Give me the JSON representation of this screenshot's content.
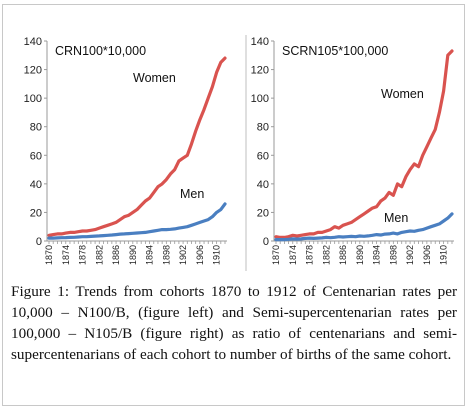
{
  "caption": {
    "label": "Figure 1:",
    "text": " Trends from cohorts 1870 to 1912 of Centenarian rates per 10,000 – N100/B, (figure left) and Semi-supercentenarian rates per 100,000 – N105/B (figure right) as ratio of centenarians and semi-supercentenarians of each cohort to number of births of the same cohort."
  },
  "colors": {
    "women": "#d9534f",
    "men": "#4a7fc1"
  },
  "chart_data": [
    {
      "type": "line",
      "title": "CRN100*10,000",
      "ylim": [
        0,
        140
      ],
      "yticks": [
        0,
        20,
        40,
        60,
        80,
        100,
        120,
        140
      ],
      "x": [
        1870,
        1871,
        1872,
        1873,
        1874,
        1875,
        1876,
        1877,
        1878,
        1879,
        1880,
        1881,
        1882,
        1883,
        1884,
        1885,
        1886,
        1887,
        1888,
        1889,
        1890,
        1891,
        1892,
        1893,
        1894,
        1895,
        1896,
        1897,
        1898,
        1899,
        1900,
        1901,
        1902,
        1903,
        1904,
        1905,
        1906,
        1907,
        1908,
        1909,
        1910,
        1911,
        1912
      ],
      "xtick_labels": [
        "1870",
        "1874",
        "1878",
        "1882",
        "1886",
        "1890",
        "1894",
        "1898",
        "1902",
        "1906",
        "1910"
      ],
      "series": [
        {
          "name": "Women",
          "values": [
            4,
            4.5,
            5,
            5,
            5.5,
            6,
            6,
            6.5,
            7,
            7,
            7.5,
            8,
            9,
            10,
            11,
            12,
            13,
            15,
            17,
            18,
            20,
            22,
            25,
            28,
            30,
            34,
            38,
            40,
            43,
            47,
            50,
            56,
            58,
            60,
            68,
            77,
            85,
            92,
            100,
            108,
            118,
            125,
            128
          ]
        },
        {
          "name": "Men",
          "values": [
            2,
            2,
            2.2,
            2.3,
            2.4,
            2.5,
            2.6,
            2.8,
            3,
            3,
            3.2,
            3.4,
            3.6,
            3.8,
            4,
            4.2,
            4.5,
            4.8,
            5,
            5.2,
            5.4,
            5.6,
            5.8,
            6,
            6.5,
            7,
            7.5,
            8,
            8,
            8.2,
            8.5,
            9,
            9.5,
            10,
            11,
            12,
            13,
            14,
            15,
            17,
            20,
            22,
            26
          ]
        }
      ]
    },
    {
      "type": "line",
      "title": "SCRN105*100,000",
      "ylim": [
        0,
        140
      ],
      "yticks": [
        0,
        20,
        40,
        60,
        80,
        100,
        120,
        140
      ],
      "x": [
        1870,
        1871,
        1872,
        1873,
        1874,
        1875,
        1876,
        1877,
        1878,
        1879,
        1880,
        1881,
        1882,
        1883,
        1884,
        1885,
        1886,
        1887,
        1888,
        1889,
        1890,
        1891,
        1892,
        1893,
        1894,
        1895,
        1896,
        1897,
        1898,
        1899,
        1900,
        1901,
        1902,
        1903,
        1904,
        1905,
        1906,
        1907,
        1908,
        1909,
        1910,
        1911,
        1912
      ],
      "xtick_labels": [
        "1870",
        "1874",
        "1878",
        "1882",
        "1886",
        "1890",
        "1894",
        "1898",
        "1902",
        "1906",
        "1910"
      ],
      "series": [
        {
          "name": "Women",
          "values": [
            3,
            2.5,
            2.5,
            3,
            4,
            3.5,
            4,
            4.5,
            5,
            5,
            6,
            6,
            7,
            8,
            10,
            9,
            11,
            12,
            13,
            15,
            17,
            19,
            21,
            23,
            24,
            28,
            30,
            34,
            32,
            40,
            38,
            45,
            50,
            54,
            52,
            60,
            66,
            72,
            78,
            90,
            105,
            130,
            133
          ]
        },
        {
          "name": "Men",
          "values": [
            1,
            1,
            1,
            1.2,
            1.5,
            1.3,
            1.5,
            1.8,
            2,
            1.8,
            2,
            2.2,
            2.5,
            2.3,
            2.6,
            3,
            2.8,
            3,
            3.2,
            3,
            3.5,
            3.3,
            3.6,
            4,
            4.5,
            4.2,
            4.8,
            5,
            5.5,
            5,
            6,
            6.5,
            7,
            6.8,
            7.5,
            8,
            9,
            10,
            11,
            12,
            14,
            16,
            19
          ]
        }
      ]
    }
  ]
}
